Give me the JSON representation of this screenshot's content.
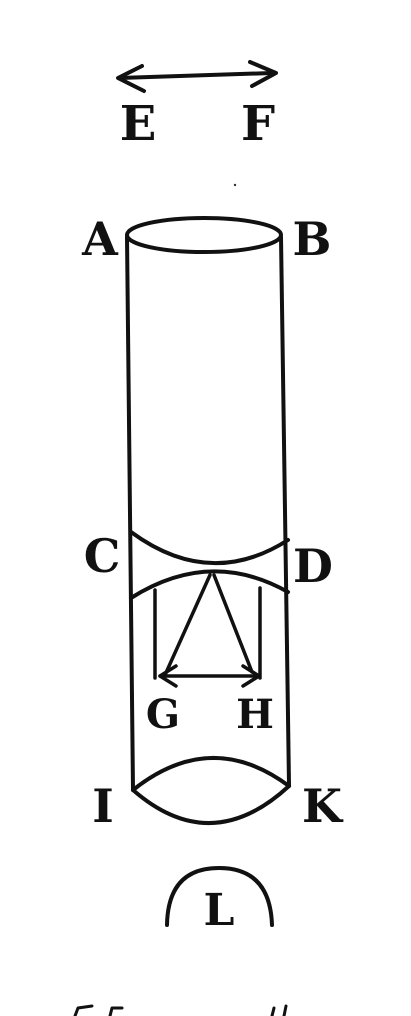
{
  "labels": {
    "E": "E",
    "F": "F",
    "A": "A",
    "B": "B",
    "C": "C",
    "D": "D",
    "G": "G",
    "H": "H",
    "I": "I",
    "K": "K",
    "L": "L"
  },
  "colors": {
    "ink": "#111111",
    "paper": "#ffffff"
  }
}
